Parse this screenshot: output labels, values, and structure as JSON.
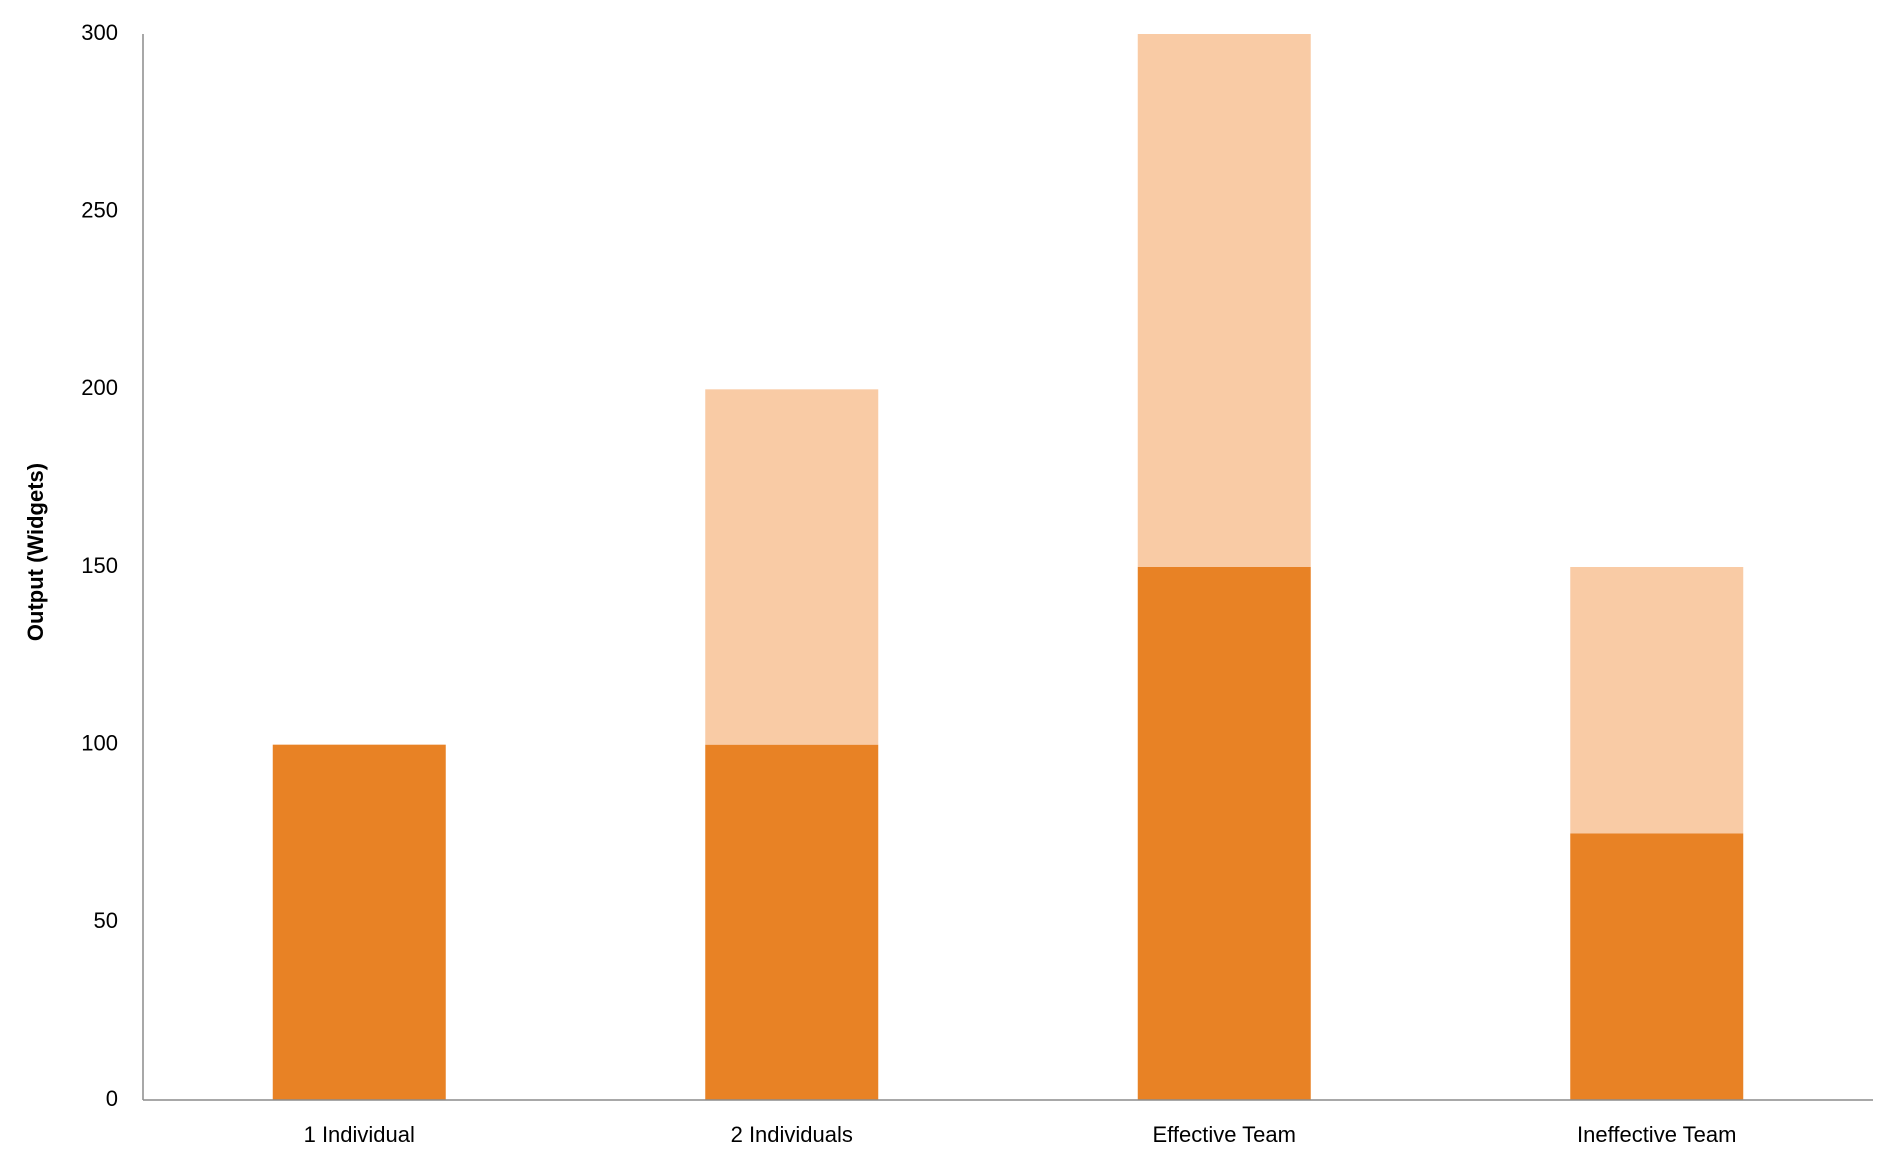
{
  "chart_data": {
    "type": "stacked_bar",
    "y_label": "Output (Widgets)",
    "categories": [
      "1 Individual",
      "2 Individuals",
      "Effective Team",
      "Ineffective Team"
    ],
    "series": [
      {
        "color": "#e88225",
        "values": [
          100,
          100,
          150,
          75
        ]
      },
      {
        "color": "#f9cba5",
        "values": [
          0,
          100,
          150,
          75
        ]
      }
    ],
    "ylim": [
      0,
      300
    ],
    "yticks": [
      0,
      50,
      100,
      150,
      200,
      250,
      300
    ],
    "grid": false
  }
}
